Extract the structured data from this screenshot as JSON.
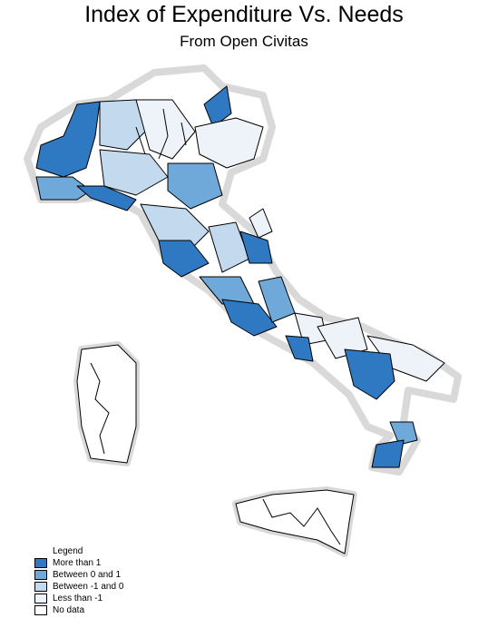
{
  "title": "Index of Expenditure Vs. Needs",
  "subtitle": "From Open Civitas",
  "colors": {
    "more_than_1": "#2f78c2",
    "between_0_and_1": "#6ea9d9",
    "between_-1_and_0": "#c3daee",
    "less_than_-1": "#eef3fa",
    "no_data": "#ffffff",
    "border": "#000000",
    "coast_halo": "#d9d9d9"
  },
  "legend": {
    "title": "Legend",
    "items": [
      {
        "label": "More than 1",
        "color_key": "more_than_1"
      },
      {
        "label": "Between 0 and 1",
        "color_key": "between_0_and_1"
      },
      {
        "label": "Between -1 and 0",
        "color_key": "between_-1_and_0"
      },
      {
        "label": "Less than -1",
        "color_key": "less_than_-1"
      },
      {
        "label": "No data",
        "color_key": "no_data"
      }
    ]
  }
}
